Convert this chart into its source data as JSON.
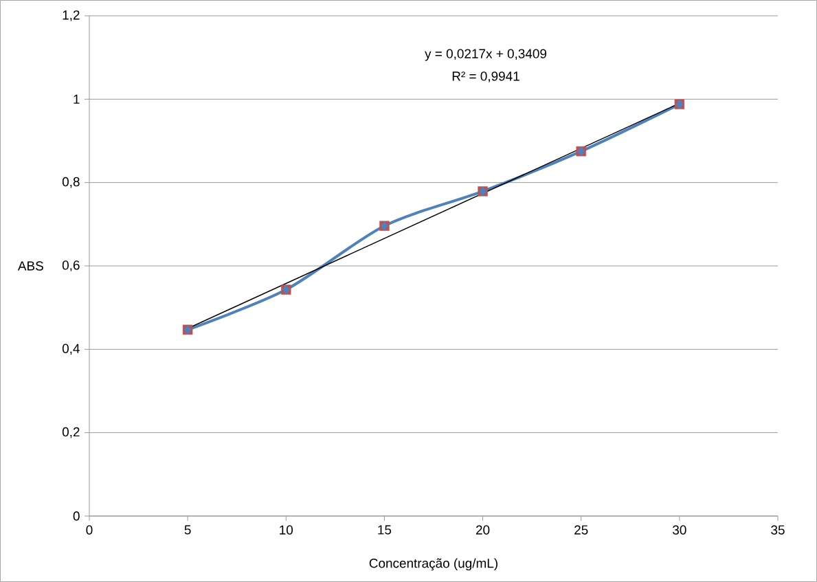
{
  "chart_data": {
    "type": "line",
    "xlabel": "Concentração (ug/mL)",
    "ylabel": "ABS",
    "annotations": [
      "y = 0,0217x + 0,3409",
      "R² = 0,9941"
    ],
    "xlim": [
      0,
      35
    ],
    "xticks": [
      0,
      5,
      10,
      15,
      20,
      25,
      30,
      35
    ],
    "ylim": [
      0,
      1.2
    ],
    "yticks": [
      0,
      {
        "value": 0.2,
        "label": "0,2"
      },
      {
        "value": 0.4,
        "label": "0,4"
      },
      {
        "value": 0.6,
        "label": "0,6"
      },
      {
        "value": 0.8,
        "label": "0,8"
      },
      1,
      {
        "value": 1.2,
        "label": "1,2"
      }
    ],
    "grid": "y",
    "series": [
      {
        "type": "scatter",
        "marker": "square",
        "color": "#c0504d",
        "x": [
          5,
          10,
          15,
          20,
          25,
          30
        ],
        "values": [
          0.447,
          0.543,
          0.696,
          0.779,
          0.875,
          0.988
        ]
      },
      {
        "marker": "diamond",
        "color": "#4f81bd",
        "x": [
          5,
          10,
          15,
          20,
          25,
          30
        ],
        "values": [
          0.447,
          0.543,
          0.696,
          0.779,
          0.875,
          0.988
        ]
      },
      {
        "type": "line",
        "marker": "none",
        "color": "#000000",
        "x": [
          5,
          30
        ],
        "values": [
          0.45,
          0.99
        ]
      }
    ]
  }
}
